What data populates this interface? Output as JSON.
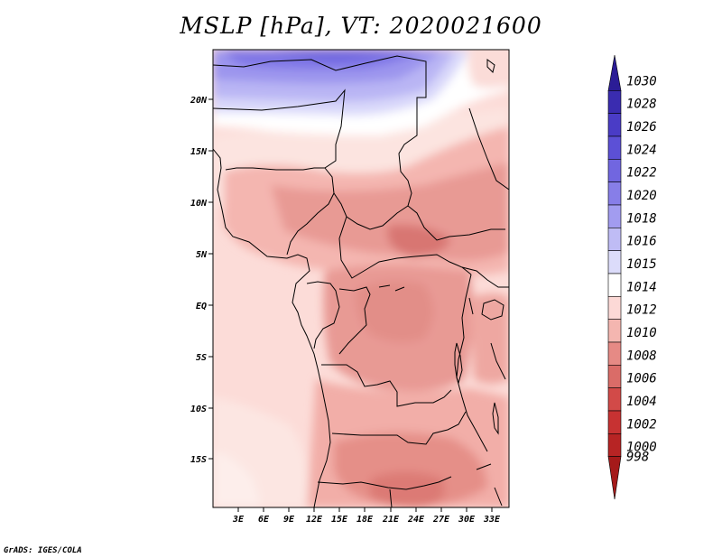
{
  "title": "MSLP [hPa], VT: 2020021600",
  "credit": "GrADS: IGES/COLA",
  "map": {
    "lat_labels": [
      "20N",
      "15N",
      "10N",
      "5N",
      "EQ",
      "5S",
      "10S",
      "15S"
    ],
    "lon_labels": [
      "3E",
      "6E",
      "9E",
      "12E",
      "15E",
      "18E",
      "21E",
      "24E",
      "27E",
      "30E",
      "33E"
    ]
  },
  "colorbar": {
    "levels": [
      "1030",
      "1028",
      "1026",
      "1024",
      "1022",
      "1020",
      "1018",
      "1016",
      "1015",
      "1014",
      "1012",
      "1010",
      "1008",
      "1006",
      "1004",
      "1002",
      "1000",
      "998"
    ],
    "colors": [
      "#2b1c96",
      "#3a2cb0",
      "#4a3cc6",
      "#5c50d6",
      "#7166e0",
      "#877ee8",
      "#a29cf0",
      "#bfbcf5",
      "#dcdcfa",
      "#ffffff",
      "#fcd9d6",
      "#f4b6b0",
      "#e68a85",
      "#da6c68",
      "#d24a48",
      "#c73232",
      "#b72424",
      "#a51a1a"
    ]
  }
}
